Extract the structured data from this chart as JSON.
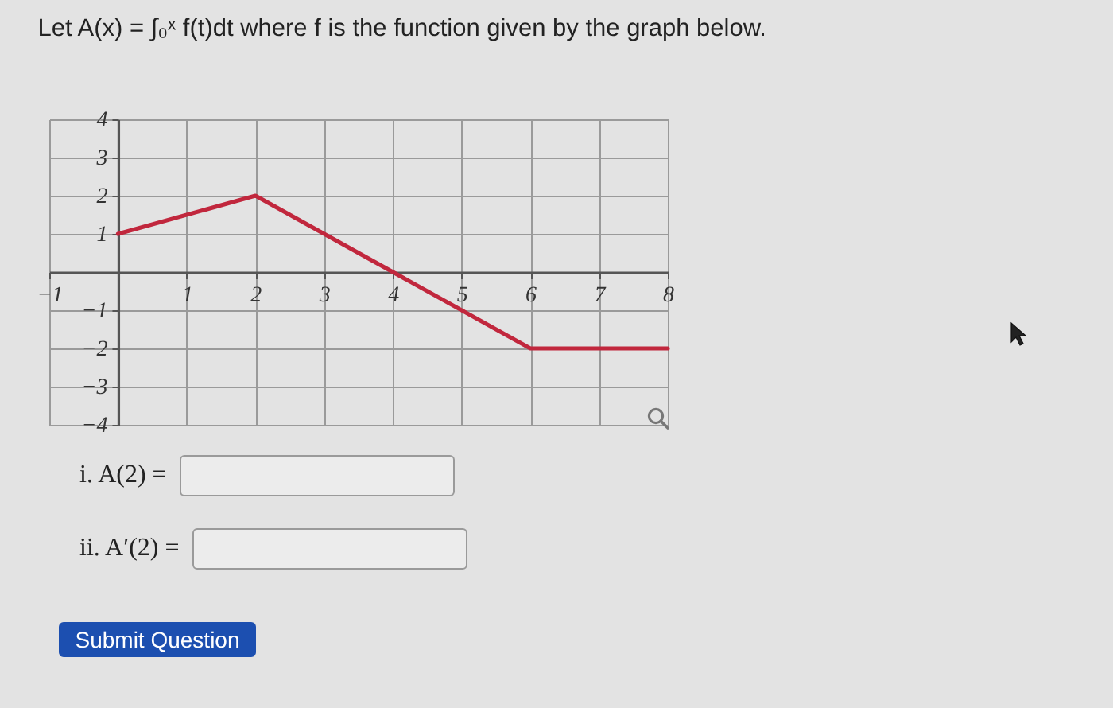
{
  "chart_data": {
    "type": "line",
    "title": "Let A(x) = ∫₀ˣ f(t)dt where f is the function given by the graph below.",
    "x": [
      0,
      2,
      6,
      8
    ],
    "values": [
      1,
      2,
      -2,
      -2
    ],
    "color": "#c1273d",
    "xlim": [
      -1,
      8
    ],
    "ylim": [
      -4,
      4
    ],
    "xticks": [
      -1,
      1,
      2,
      3,
      4,
      5,
      6,
      7,
      8
    ],
    "yticks": [
      -4,
      -3,
      -2,
      -1,
      1,
      2,
      3,
      4
    ],
    "grid": true,
    "annotations": [
      "i. A(2) =",
      "ii. A′(2) =",
      "Submit Question"
    ]
  }
}
